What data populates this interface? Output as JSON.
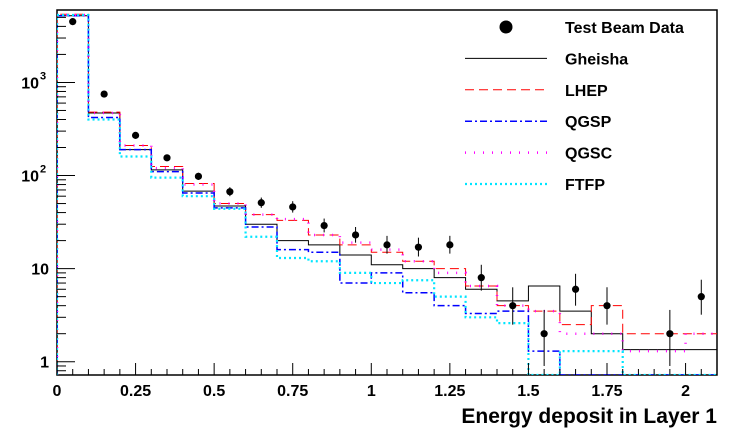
{
  "chart_data": {
    "type": "histogram-comparison",
    "xlabel": "Energy deposit in Layer 1",
    "ylabel": "",
    "xlim": [
      0,
      2.1
    ],
    "ylim": [
      0.72,
      6000
    ],
    "yscale": "log",
    "bin_width": 0.1,
    "x_ticks": [
      {
        "value": 0,
        "label": "0"
      },
      {
        "value": 0.25,
        "label": "0.25"
      },
      {
        "value": 0.5,
        "label": "0.5"
      },
      {
        "value": 0.75,
        "label": "0.75"
      },
      {
        "value": 1,
        "label": "1"
      },
      {
        "value": 1.25,
        "label": "1.25"
      },
      {
        "value": 1.5,
        "label": "1.5"
      },
      {
        "value": 1.75,
        "label": "1.75"
      },
      {
        "value": 2,
        "label": "2"
      }
    ],
    "y_ticks": [
      {
        "value": 1,
        "label": "1"
      },
      {
        "value": 10,
        "label": "10"
      },
      {
        "value": 100,
        "label": "10",
        "sup": "2"
      },
      {
        "value": 1000,
        "label": "10",
        "sup": "3"
      }
    ],
    "legend_position": "top-right",
    "data_points": {
      "name": "Test Beam Data",
      "color": "#000000",
      "points": [
        {
          "x": 0.05,
          "y": 4500,
          "lo": 4400,
          "hi": 4600
        },
        {
          "x": 0.15,
          "y": 750,
          "lo": 720,
          "hi": 780
        },
        {
          "x": 0.25,
          "y": 270,
          "lo": 255,
          "hi": 285
        },
        {
          "x": 0.35,
          "y": 155,
          "lo": 145,
          "hi": 167
        },
        {
          "x": 0.45,
          "y": 98,
          "lo": 90,
          "hi": 107
        },
        {
          "x": 0.55,
          "y": 67,
          "lo": 60,
          "hi": 75
        },
        {
          "x": 0.65,
          "y": 51,
          "lo": 45,
          "hi": 58
        },
        {
          "x": 0.75,
          "y": 46,
          "lo": 40,
          "hi": 53
        },
        {
          "x": 0.85,
          "y": 29,
          "lo": 24.5,
          "hi": 34.5
        },
        {
          "x": 0.95,
          "y": 23,
          "lo": 19,
          "hi": 28
        },
        {
          "x": 1.05,
          "y": 18,
          "lo": 14.5,
          "hi": 22.5
        },
        {
          "x": 1.15,
          "y": 17,
          "lo": 13.5,
          "hi": 21.5
        },
        {
          "x": 1.25,
          "y": 18,
          "lo": 14.5,
          "hi": 22.5
        },
        {
          "x": 1.35,
          "y": 8,
          "lo": 5.8,
          "hi": 11
        },
        {
          "x": 1.45,
          "y": 4,
          "lo": 2.5,
          "hi": 6.3
        },
        {
          "x": 1.55,
          "y": 2,
          "lo": 0.9,
          "hi": 3.6
        },
        {
          "x": 1.65,
          "y": 6,
          "lo": 4.0,
          "hi": 8.8
        },
        {
          "x": 1.75,
          "y": 4,
          "lo": 2.5,
          "hi": 6.3
        },
        {
          "x": 1.95,
          "y": 2,
          "lo": 0.9,
          "hi": 3.6
        },
        {
          "x": 2.05,
          "y": 5,
          "lo": 3.2,
          "hi": 7.6
        }
      ]
    },
    "series": [
      {
        "name": "Gheisha",
        "color": "#000000",
        "dash": "",
        "width": 1,
        "values": [
          5200,
          470,
          190,
          115,
          68,
          47,
          30,
          20,
          18,
          14,
          11,
          10,
          8,
          6,
          4.5,
          6.5,
          3.5,
          2,
          1.35,
          1.35,
          1.35
        ]
      },
      {
        "name": "LHEP",
        "color": "#ff0000",
        "dash": "9,5",
        "width": 1,
        "values": [
          5400,
          480,
          210,
          125,
          82,
          50,
          38,
          33,
          23,
          18,
          15,
          12,
          10,
          6.5,
          4,
          3.5,
          2.5,
          4,
          2,
          2,
          2
        ]
      },
      {
        "name": "QGSP",
        "color": "#0000ff",
        "dash": "7,3,2,3",
        "width": 1.5,
        "values": [
          5200,
          420,
          190,
          110,
          65,
          45,
          28,
          16,
          15,
          7,
          9,
          5.5,
          4,
          3.3,
          3.5,
          1.3,
          0.5,
          0.5,
          0.5,
          0.5,
          0.5
        ]
      },
      {
        "name": "QGSC",
        "color": "#ff00ff",
        "dash": "1,8",
        "width": 2.5,
        "values": [
          5300,
          470,
          210,
          120,
          80,
          50,
          38,
          34,
          23,
          19,
          16,
          12,
          9,
          6.5,
          4,
          3.5,
          2,
          2,
          1.3,
          1.3,
          2
        ]
      },
      {
        "name": "FTFP",
        "color": "#00e5ff",
        "dash": "2,3",
        "width": 2.2,
        "values": [
          5300,
          400,
          160,
          95,
          60,
          44,
          22,
          13,
          12,
          9,
          7,
          7.5,
          5,
          3,
          2.6,
          0.5,
          1.3,
          1.3,
          0.5,
          0.5,
          0.5
        ]
      }
    ]
  }
}
